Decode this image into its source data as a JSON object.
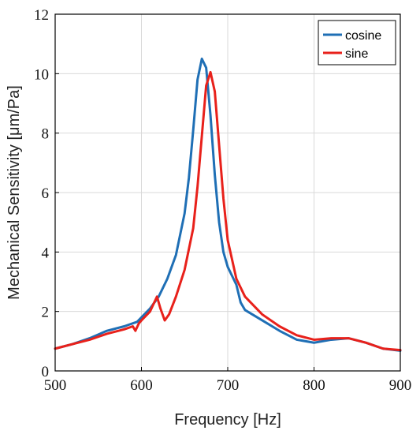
{
  "chart_data": {
    "type": "line",
    "title": "",
    "xlabel": "Frequency [Hz]",
    "ylabel": "Mechanical Sensitivity [μm/Pa]",
    "xlim": [
      500,
      900
    ],
    "ylim": [
      0,
      12
    ],
    "xticks": [
      500,
      600,
      700,
      800,
      900
    ],
    "yticks": [
      0,
      2,
      4,
      6,
      8,
      10,
      12
    ],
    "xtick_labels": [
      "500",
      "600",
      "700",
      "800",
      "900"
    ],
    "ytick_labels": [
      "0",
      "2",
      "4",
      "6",
      "8",
      "10",
      "12"
    ],
    "grid": true,
    "legend_position": "top-right",
    "series": [
      {
        "name": "cosine",
        "color": "#1f6fb5",
        "x": [
          500,
          520,
          540,
          560,
          580,
          595,
          600,
          610,
          620,
          630,
          640,
          650,
          655,
          660,
          665,
          670,
          675,
          680,
          685,
          690,
          695,
          700,
          705,
          710,
          715,
          720,
          740,
          760,
          780,
          800,
          820,
          840,
          860,
          880,
          900
        ],
        "y": [
          0.75,
          0.9,
          1.1,
          1.35,
          1.5,
          1.65,
          1.8,
          2.1,
          2.5,
          3.1,
          3.9,
          5.3,
          6.5,
          8.1,
          9.8,
          10.5,
          10.2,
          8.6,
          6.6,
          5.0,
          4.0,
          3.5,
          3.2,
          2.9,
          2.3,
          2.05,
          1.7,
          1.35,
          1.05,
          0.95,
          1.05,
          1.1,
          0.95,
          0.75,
          0.68
        ]
      },
      {
        "name": "sine",
        "color": "#e8211b",
        "x": [
          500,
          520,
          540,
          560,
          580,
          590,
          593,
          597,
          600,
          610,
          618,
          622,
          627,
          632,
          640,
          650,
          660,
          665,
          670,
          675,
          680,
          685,
          690,
          695,
          700,
          710,
          720,
          740,
          760,
          780,
          800,
          820,
          840,
          860,
          880,
          900
        ],
        "y": [
          0.75,
          0.9,
          1.05,
          1.25,
          1.4,
          1.5,
          1.35,
          1.6,
          1.7,
          2.0,
          2.5,
          2.1,
          1.7,
          1.9,
          2.5,
          3.4,
          4.8,
          6.2,
          7.9,
          9.6,
          10.05,
          9.4,
          7.6,
          5.8,
          4.4,
          3.1,
          2.5,
          1.9,
          1.5,
          1.2,
          1.05,
          1.1,
          1.1,
          0.95,
          0.75,
          0.7
        ]
      }
    ]
  }
}
